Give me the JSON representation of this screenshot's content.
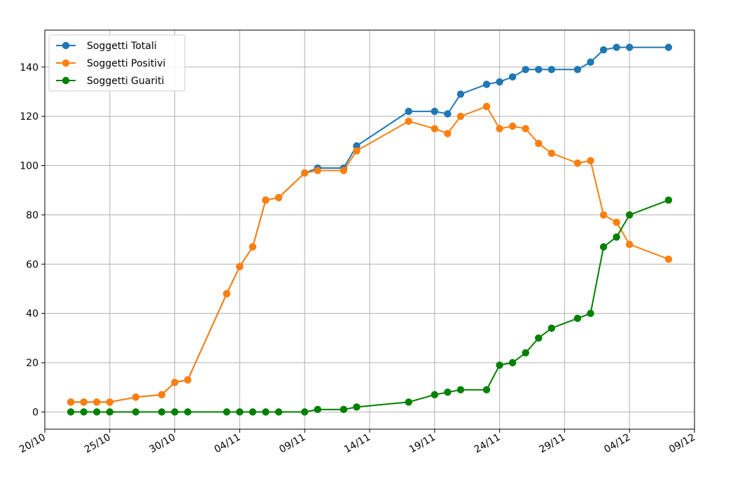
{
  "chart_data": {
    "type": "line",
    "title": "",
    "xlabel": "",
    "ylabel": "",
    "x_type": "date",
    "x_ticks": [
      "2020-10-20",
      "2020-10-25",
      "2020-10-30",
      "2020-11-04",
      "2020-11-09",
      "2020-11-14",
      "2020-11-19",
      "2020-11-24",
      "2020-11-29",
      "2020-12-04",
      "2020-12-09"
    ],
    "x_tick_labels": [
      "20/10",
      "25/10",
      "30/10",
      "04/11",
      "09/11",
      "14/11",
      "19/11",
      "24/11",
      "29/11",
      "04/12",
      "09/12"
    ],
    "xlim": [
      "2020-10-20",
      "2020-12-09"
    ],
    "y_ticks": [
      0,
      20,
      40,
      60,
      80,
      100,
      120,
      140
    ],
    "y_tick_labels": [
      "0",
      "20",
      "40",
      "60",
      "80",
      "100",
      "120",
      "140"
    ],
    "ylim": [
      -7,
      155
    ],
    "grid": true,
    "legend_position": "top-left",
    "series": [
      {
        "name": "Soggetti Totali",
        "color": "#1f77b4",
        "points": [
          [
            "2020-10-22",
            4
          ],
          [
            "2020-10-23",
            4
          ],
          [
            "2020-10-24",
            4
          ],
          [
            "2020-10-25",
            4
          ],
          [
            "2020-10-27",
            6
          ],
          [
            "2020-10-29",
            7
          ],
          [
            "2020-10-30",
            12
          ],
          [
            "2020-10-31",
            13
          ],
          [
            "2020-11-03",
            48
          ],
          [
            "2020-11-04",
            59
          ],
          [
            "2020-11-05",
            67
          ],
          [
            "2020-11-06",
            86
          ],
          [
            "2020-11-07",
            87
          ],
          [
            "2020-11-09",
            97
          ],
          [
            "2020-11-10",
            99
          ],
          [
            "2020-11-12",
            99
          ],
          [
            "2020-11-13",
            108
          ],
          [
            "2020-11-17",
            122
          ],
          [
            "2020-11-19",
            122
          ],
          [
            "2020-11-20",
            121
          ],
          [
            "2020-11-21",
            129
          ],
          [
            "2020-11-23",
            133
          ],
          [
            "2020-11-24",
            134
          ],
          [
            "2020-11-25",
            136
          ],
          [
            "2020-11-26",
            139
          ],
          [
            "2020-11-27",
            139
          ],
          [
            "2020-11-28",
            139
          ],
          [
            "2020-11-30",
            139
          ],
          [
            "2020-12-01",
            142
          ],
          [
            "2020-12-02",
            147
          ],
          [
            "2020-12-03",
            148
          ],
          [
            "2020-12-04",
            148
          ],
          [
            "2020-12-07",
            148
          ]
        ]
      },
      {
        "name": "Soggetti Positivi",
        "color": "#ff7f0e",
        "points": [
          [
            "2020-10-22",
            4
          ],
          [
            "2020-10-23",
            4
          ],
          [
            "2020-10-24",
            4
          ],
          [
            "2020-10-25",
            4
          ],
          [
            "2020-10-27",
            6
          ],
          [
            "2020-10-29",
            7
          ],
          [
            "2020-10-30",
            12
          ],
          [
            "2020-10-31",
            13
          ],
          [
            "2020-11-03",
            48
          ],
          [
            "2020-11-04",
            59
          ],
          [
            "2020-11-05",
            67
          ],
          [
            "2020-11-06",
            86
          ],
          [
            "2020-11-07",
            87
          ],
          [
            "2020-11-09",
            97
          ],
          [
            "2020-11-10",
            98
          ],
          [
            "2020-11-12",
            98
          ],
          [
            "2020-11-13",
            106
          ],
          [
            "2020-11-17",
            118
          ],
          [
            "2020-11-19",
            115
          ],
          [
            "2020-11-20",
            113
          ],
          [
            "2020-11-21",
            120
          ],
          [
            "2020-11-23",
            124
          ],
          [
            "2020-11-24",
            115
          ],
          [
            "2020-11-25",
            116
          ],
          [
            "2020-11-26",
            115
          ],
          [
            "2020-11-27",
            109
          ],
          [
            "2020-11-28",
            105
          ],
          [
            "2020-11-30",
            101
          ],
          [
            "2020-12-01",
            102
          ],
          [
            "2020-12-02",
            80
          ],
          [
            "2020-12-03",
            77
          ],
          [
            "2020-12-04",
            68
          ],
          [
            "2020-12-07",
            62
          ]
        ]
      },
      {
        "name": "Soggetti Guariti",
        "color": "#008000",
        "points": [
          [
            "2020-10-22",
            0
          ],
          [
            "2020-10-23",
            0
          ],
          [
            "2020-10-24",
            0
          ],
          [
            "2020-10-25",
            0
          ],
          [
            "2020-10-27",
            0
          ],
          [
            "2020-10-29",
            0
          ],
          [
            "2020-10-30",
            0
          ],
          [
            "2020-10-31",
            0
          ],
          [
            "2020-11-03",
            0
          ],
          [
            "2020-11-04",
            0
          ],
          [
            "2020-11-05",
            0
          ],
          [
            "2020-11-06",
            0
          ],
          [
            "2020-11-07",
            0
          ],
          [
            "2020-11-09",
            0
          ],
          [
            "2020-11-10",
            1
          ],
          [
            "2020-11-12",
            1
          ],
          [
            "2020-11-13",
            2
          ],
          [
            "2020-11-17",
            4
          ],
          [
            "2020-11-19",
            7
          ],
          [
            "2020-11-20",
            8
          ],
          [
            "2020-11-21",
            9
          ],
          [
            "2020-11-23",
            9
          ],
          [
            "2020-11-24",
            19
          ],
          [
            "2020-11-25",
            20
          ],
          [
            "2020-11-26",
            24
          ],
          [
            "2020-11-27",
            30
          ],
          [
            "2020-11-28",
            34
          ],
          [
            "2020-11-30",
            38
          ],
          [
            "2020-12-01",
            40
          ],
          [
            "2020-12-02",
            67
          ],
          [
            "2020-12-03",
            71
          ],
          [
            "2020-12-04",
            80
          ],
          [
            "2020-12-07",
            86
          ]
        ]
      }
    ]
  }
}
